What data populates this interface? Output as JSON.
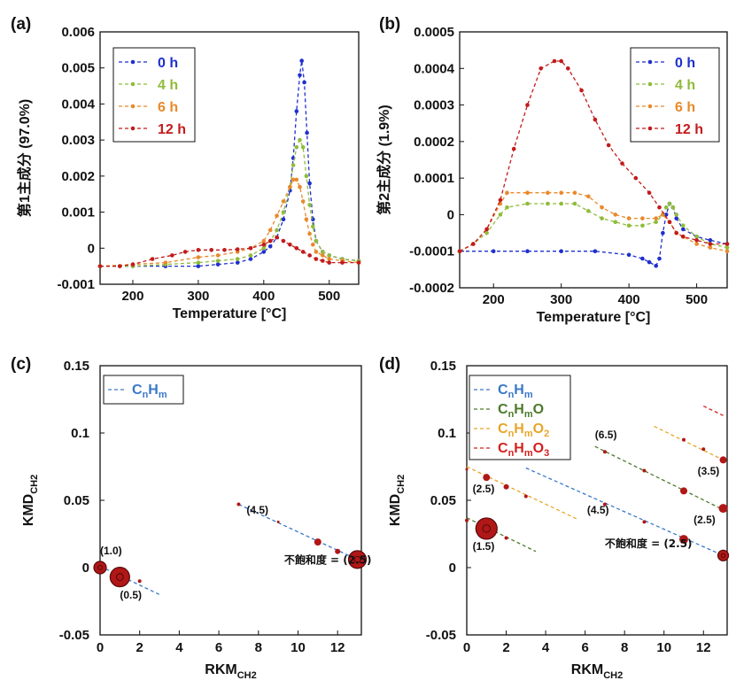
{
  "chart_data": [
    {
      "type": "line",
      "panel_label": "(a)",
      "xlabel": "Temperature [°C]",
      "ylabel": "第1主成分 (97.0%)",
      "xlim": [
        150,
        545
      ],
      "ylim": [
        -0.001,
        0.006
      ],
      "x_ticks": [
        200,
        300,
        400,
        500
      ],
      "y_ticks": [
        "-0.001",
        "0",
        "0.001",
        "0.002",
        "0.003",
        "0.004",
        "0.005",
        "0.006"
      ],
      "legend": "top-left",
      "series": [
        {
          "name": "0 h",
          "color": "#1f2fcf",
          "x": [
            150,
            200,
            250,
            300,
            330,
            360,
            380,
            400,
            410,
            420,
            430,
            440,
            445,
            450,
            455,
            458,
            462,
            466,
            470,
            475,
            480,
            490,
            500,
            520,
            545
          ],
          "y": [
            -0.0005,
            -0.0005,
            -0.0005,
            -0.0005,
            -0.00045,
            -0.0004,
            -0.0003,
            -0.0001,
            5e-05,
            0.0003,
            0.0008,
            0.0016,
            0.0025,
            0.0038,
            0.0048,
            0.0052,
            0.0046,
            0.0032,
            0.0018,
            0.0008,
            0.0002,
            -0.0001,
            -0.0002,
            -0.0003,
            -0.00035
          ]
        },
        {
          "name": "4 h",
          "color": "#8fbc3a",
          "x": [
            150,
            200,
            250,
            300,
            330,
            360,
            380,
            400,
            410,
            420,
            430,
            440,
            445,
            450,
            455,
            460,
            465,
            470,
            475,
            480,
            490,
            500,
            520,
            545
          ],
          "y": [
            -0.0005,
            -0.0005,
            -0.00045,
            -0.0004,
            -0.00035,
            -0.0003,
            -0.0002,
            0.0,
            0.0002,
            0.0005,
            0.001,
            0.0017,
            0.0023,
            0.0028,
            0.003,
            0.0028,
            0.002,
            0.0012,
            0.0006,
            0.0002,
            -0.0001,
            -0.0002,
            -0.0003,
            -0.00035
          ]
        },
        {
          "name": "6 h",
          "color": "#e8892a",
          "x": [
            150,
            200,
            250,
            300,
            330,
            360,
            380,
            400,
            410,
            420,
            430,
            440,
            445,
            450,
            455,
            460,
            465,
            470,
            475,
            480,
            490,
            500,
            520,
            545
          ],
          "y": [
            -0.0005,
            -0.00045,
            -0.0004,
            -0.00025,
            -0.0002,
            -0.0001,
            0.0,
            0.0002,
            0.0005,
            0.0009,
            0.0013,
            0.0017,
            0.0019,
            0.0019,
            0.0017,
            0.0013,
            0.0008,
            0.0004,
            0.0001,
            -0.0001,
            -0.0002,
            -0.0003,
            -0.00035,
            -0.0004
          ]
        },
        {
          "name": "12 h",
          "color": "#c21b1b",
          "x": [
            150,
            180,
            200,
            230,
            260,
            280,
            300,
            320,
            340,
            360,
            380,
            400,
            410,
            420,
            430,
            440,
            450,
            460,
            470,
            480,
            490,
            500,
            520,
            545
          ],
          "y": [
            -0.0005,
            -0.0005,
            -0.00045,
            -0.0003,
            -0.0002,
            -0.0001,
            -5e-05,
            -5e-05,
            -5e-05,
            -3e-05,
            0.0,
            0.0001,
            0.0002,
            0.0003,
            0.0002,
            0.0001,
            0.0,
            -0.0001,
            -0.0002,
            -0.0003,
            -0.00035,
            -0.0004,
            -0.0004,
            -0.0004
          ]
        }
      ]
    },
    {
      "type": "line",
      "panel_label": "(b)",
      "xlabel": "Temperature [°C]",
      "ylabel": "第2主成分 (1.9%)",
      "xlim": [
        150,
        545
      ],
      "ylim": [
        -0.0002,
        0.0005
      ],
      "x_ticks": [
        200,
        300,
        400,
        500
      ],
      "y_ticks": [
        "-0.0002",
        "-0.0001",
        "0",
        "0.0001",
        "0.0002",
        "0.0003",
        "0.0004",
        "0.0005"
      ],
      "legend": "top-right",
      "series": [
        {
          "name": "0 h",
          "color": "#1f2fcf",
          "x": [
            150,
            200,
            250,
            300,
            350,
            400,
            420,
            430,
            440,
            445,
            450,
            455,
            460,
            465,
            470,
            480,
            500,
            520,
            545
          ],
          "y": [
            -0.0001,
            -0.0001,
            -0.0001,
            -0.0001,
            -0.0001,
            -0.00011,
            -0.00012,
            -0.00013,
            -0.00014,
            -0.00012,
            -5e-05,
            0.0,
            3e-05,
            2e-05,
            -1e-05,
            -4e-05,
            -6e-05,
            -7e-05,
            -8e-05
          ]
        },
        {
          "name": "4 h",
          "color": "#8fbc3a",
          "x": [
            150,
            170,
            190,
            210,
            220,
            250,
            280,
            300,
            320,
            340,
            360,
            380,
            400,
            420,
            440,
            450,
            455,
            460,
            465,
            470,
            480,
            500,
            520,
            545
          ],
          "y": [
            -0.0001,
            -8e-05,
            -5e-05,
            0.0,
            2e-05,
            3e-05,
            3e-05,
            3e-05,
            3e-05,
            1e-05,
            -1e-05,
            -2e-05,
            -3e-05,
            -3e-05,
            -2e-05,
            0.0,
            2e-05,
            3e-05,
            2e-05,
            0.0,
            -3e-05,
            -6e-05,
            -8e-05,
            -9e-05
          ]
        },
        {
          "name": "6 h",
          "color": "#e8892a",
          "x": [
            150,
            170,
            190,
            210,
            220,
            250,
            280,
            300,
            320,
            340,
            360,
            380,
            400,
            420,
            440,
            450,
            460,
            470,
            480,
            500,
            520,
            545
          ],
          "y": [
            -0.0001,
            -8e-05,
            -4e-05,
            3e-05,
            6e-05,
            6e-05,
            6e-05,
            6e-05,
            6e-05,
            5e-05,
            2e-05,
            0.0,
            -1e-05,
            -1e-05,
            -1e-05,
            0.0,
            -2e-05,
            -5e-05,
            -6e-05,
            -8e-05,
            -9e-05,
            -0.0001
          ]
        },
        {
          "name": "12 h",
          "color": "#c21b1b",
          "x": [
            150,
            170,
            190,
            210,
            230,
            250,
            270,
            290,
            300,
            310,
            330,
            350,
            370,
            390,
            410,
            430,
            445,
            460,
            470,
            480,
            500,
            520,
            545
          ],
          "y": [
            -0.0001,
            -8e-05,
            -4e-05,
            4e-05,
            0.00018,
            0.0003,
            0.0004,
            0.00042,
            0.00042,
            0.0004,
            0.00034,
            0.00026,
            0.00019,
            0.00014,
            0.0001,
            6e-05,
            2e-05,
            -2e-05,
            -5e-05,
            -6e-05,
            -7e-05,
            -8e-05,
            -8e-05
          ]
        }
      ]
    },
    {
      "type": "scatter",
      "panel_label": "(c)",
      "xlabel": "RKM",
      "xlabel_sub": "CH2",
      "ylabel": "KMD",
      "ylabel_sub": "CH2",
      "xlim": [
        0,
        13.2
      ],
      "ylim": [
        -0.05,
        0.15
      ],
      "x_ticks": [
        "0",
        "2",
        "4",
        "6",
        "8",
        "10",
        "12"
      ],
      "y_ticks": [
        "-0.05",
        "0",
        "0.05",
        "0.1",
        "0.15"
      ],
      "legend": "top-left",
      "legend_entries": [
        {
          "base": "C",
          "s1": "n",
          "mid": "H",
          "s2": "m",
          "tail": "",
          "s3": "",
          "color": "#3a78c9"
        }
      ],
      "trend_lines": [
        {
          "color": "#3a78c9",
          "x": [
            0,
            3
          ],
          "y": [
            0.001,
            -0.02
          ]
        },
        {
          "color": "#3a78c9",
          "x": [
            7,
            13
          ],
          "y": [
            0.047,
            0.006
          ]
        }
      ],
      "points": [
        {
          "x": 0,
          "y": 0.0,
          "size": 7
        },
        {
          "x": 1,
          "y": -0.007,
          "size": 11
        },
        {
          "x": 2,
          "y": -0.01,
          "size": 2
        },
        {
          "x": 7,
          "y": 0.047,
          "size": 2
        },
        {
          "x": 9,
          "y": 0.034,
          "size": 1.5
        },
        {
          "x": 11,
          "y": 0.019,
          "size": 4
        },
        {
          "x": 12,
          "y": 0.012,
          "size": 3
        },
        {
          "x": 13,
          "y": 0.006,
          "size": 10
        }
      ],
      "annotations": [
        {
          "text": "(1.0)",
          "x": 0,
          "y": 0.01
        },
        {
          "text": "(0.5)",
          "x": 1,
          "y": -0.023
        },
        {
          "text": "(4.5)",
          "x": 7.4,
          "y": 0.04
        },
        {
          "text": "不飽和度 = (2.5)",
          "x": 9.3,
          "y": 0.003
        }
      ]
    },
    {
      "type": "scatter",
      "panel_label": "(d)",
      "xlabel": "RKM",
      "xlabel_sub": "CH2",
      "ylabel": "KMD",
      "ylabel_sub": "CH2",
      "xlim": [
        0,
        13.2
      ],
      "ylim": [
        -0.05,
        0.15
      ],
      "x_ticks": [
        "0",
        "2",
        "4",
        "6",
        "8",
        "10",
        "12"
      ],
      "y_ticks": [
        "-0.05",
        "0",
        "0.05",
        "0.1",
        "0.15"
      ],
      "legend": "top-left",
      "legend_entries": [
        {
          "base": "C",
          "s1": "n",
          "mid": "H",
          "s2": "m",
          "tail": "",
          "s3": "",
          "color": "#3a78c9"
        },
        {
          "base": "C",
          "s1": "n",
          "mid": "H",
          "s2": "m",
          "tail": "O",
          "s3": "",
          "color": "#4d7a2a"
        },
        {
          "base": "C",
          "s1": "n",
          "mid": "H",
          "s2": "m",
          "tail": "O",
          "s3": "2",
          "color": "#e8a52a"
        },
        {
          "base": "C",
          "s1": "n",
          "mid": "H",
          "s2": "m",
          "tail": "O",
          "s3": "3",
          "color": "#d41f1f"
        }
      ],
      "trend_lines": [
        {
          "color": "#3a78c9",
          "x": [
            3,
            13
          ],
          "y": [
            0.074,
            0.009
          ]
        },
        {
          "color": "#4d7a2a",
          "x": [
            0,
            3.5
          ],
          "y": [
            0.037,
            0.012
          ]
        },
        {
          "color": "#4d7a2a",
          "x": [
            6.5,
            13
          ],
          "y": [
            0.09,
            0.043
          ]
        },
        {
          "color": "#e8a52a",
          "x": [
            0,
            5.6
          ],
          "y": [
            0.075,
            0.036
          ]
        },
        {
          "color": "#e8a52a",
          "x": [
            9.5,
            13
          ],
          "y": [
            0.105,
            0.08
          ]
        },
        {
          "color": "#d41f1f",
          "x": [
            12,
            13
          ],
          "y": [
            0.12,
            0.113
          ]
        }
      ],
      "points": [
        {
          "x": 1,
          "y": 0.029,
          "size": 12
        },
        {
          "x": 0,
          "y": 0.035,
          "size": 2
        },
        {
          "x": 2,
          "y": 0.022,
          "size": 2
        },
        {
          "x": 1,
          "y": 0.067,
          "size": 4
        },
        {
          "x": 2,
          "y": 0.06,
          "size": 3
        },
        {
          "x": 3,
          "y": 0.053,
          "size": 2
        },
        {
          "x": 0,
          "y": 0.073,
          "size": 1.5
        },
        {
          "x": 7,
          "y": 0.047,
          "size": 2
        },
        {
          "x": 9,
          "y": 0.034,
          "size": 2
        },
        {
          "x": 11,
          "y": 0.021,
          "size": 5
        },
        {
          "x": 13,
          "y": 0.009,
          "size": 6
        },
        {
          "x": 7,
          "y": 0.086,
          "size": 2
        },
        {
          "x": 9,
          "y": 0.072,
          "size": 2
        },
        {
          "x": 11,
          "y": 0.057,
          "size": 4
        },
        {
          "x": 13,
          "y": 0.044,
          "size": 5
        },
        {
          "x": 11,
          "y": 0.095,
          "size": 2
        },
        {
          "x": 12,
          "y": 0.088,
          "size": 2
        },
        {
          "x": 13,
          "y": 0.08,
          "size": 4
        }
      ],
      "annotations": [
        {
          "text": "(6.5)",
          "x": 6.5,
          "y": 0.096
        },
        {
          "text": "(2.5)",
          "x": 0.3,
          "y": 0.056
        },
        {
          "text": "(4.5)",
          "x": 6.1,
          "y": 0.04
        },
        {
          "text": "(3.5)",
          "x": 11.7,
          "y": 0.069
        },
        {
          "text": "(2.5)",
          "x": 11.5,
          "y": 0.033
        },
        {
          "text": "(1.5)",
          "x": 0.3,
          "y": 0.013
        },
        {
          "text": "不飽和度 = (2.5)",
          "x": 7.0,
          "y": 0.015
        }
      ]
    }
  ]
}
